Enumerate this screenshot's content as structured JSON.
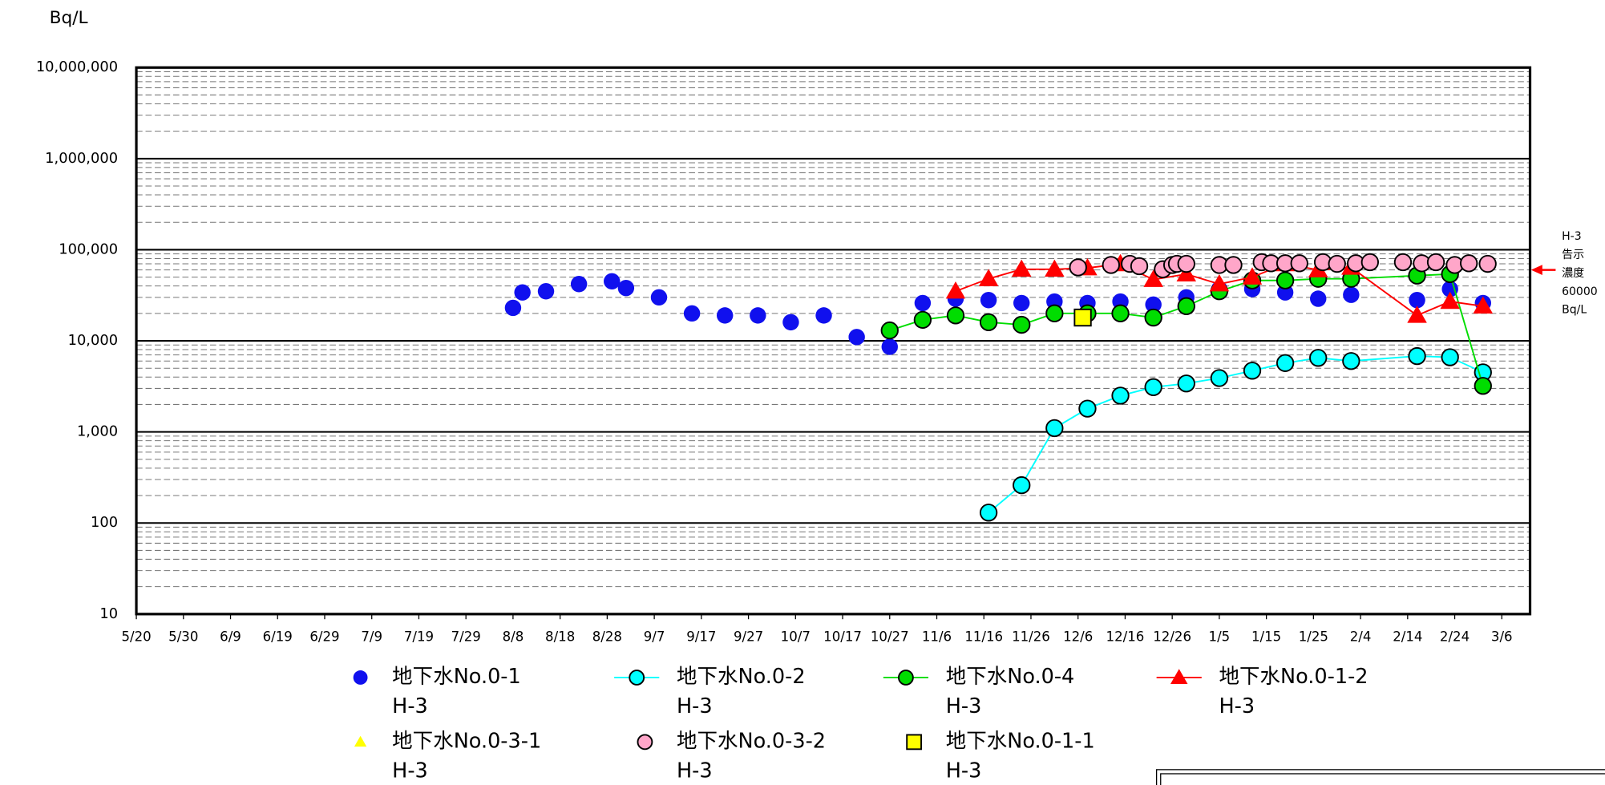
{
  "chart_data": {
    "type": "scatter",
    "y_unit_label": "Bq/L",
    "log_y": true,
    "grid": true,
    "minor_grid": true,
    "ylim": [
      10,
      10000000
    ],
    "yticks": [
      10,
      100,
      {
        "value": 1000,
        "label": "1,000"
      },
      {
        "value": 10000,
        "label": "10,000"
      },
      {
        "value": 100000,
        "label": "100,000"
      },
      {
        "value": 1000000,
        "label": "1,000,000"
      },
      {
        "value": 10000000,
        "label": "10,000,000"
      }
    ],
    "xlim": [
      0,
      296
    ],
    "xticks": [
      {
        "value": 0,
        "label": "5/20"
      },
      {
        "value": 10,
        "label": "5/30"
      },
      {
        "value": 20,
        "label": "6/9"
      },
      {
        "value": 30,
        "label": "6/19"
      },
      {
        "value": 40,
        "label": "6/29"
      },
      {
        "value": 50,
        "label": "7/9"
      },
      {
        "value": 60,
        "label": "7/19"
      },
      {
        "value": 70,
        "label": "7/29"
      },
      {
        "value": 80,
        "label": "8/8"
      },
      {
        "value": 90,
        "label": "8/18"
      },
      {
        "value": 100,
        "label": "8/28"
      },
      {
        "value": 110,
        "label": "9/7"
      },
      {
        "value": 120,
        "label": "9/17"
      },
      {
        "value": 130,
        "label": "9/27"
      },
      {
        "value": 140,
        "label": "10/7"
      },
      {
        "value": 150,
        "label": "10/17"
      },
      {
        "value": 160,
        "label": "10/27"
      },
      {
        "value": 170,
        "label": "11/6"
      },
      {
        "value": 180,
        "label": "11/16"
      },
      {
        "value": 190,
        "label": "11/26"
      },
      {
        "value": 200,
        "label": "12/6"
      },
      {
        "value": 210,
        "label": "12/16"
      },
      {
        "value": 220,
        "label": "12/26"
      },
      {
        "value": 230,
        "label": "1/5"
      },
      {
        "value": 240,
        "label": "1/15"
      },
      {
        "value": 250,
        "label": "1/25"
      },
      {
        "value": 260,
        "label": "2/4"
      },
      {
        "value": 270,
        "label": "2/14"
      },
      {
        "value": 280,
        "label": "2/24"
      },
      {
        "value": 290,
        "label": "3/6"
      }
    ],
    "series": [
      {
        "name": "地下水No.0-1 H-3",
        "color": "#1010ee",
        "marker": "circle",
        "line": false,
        "x": [
          80,
          82,
          87,
          94,
          101,
          104,
          111,
          118,
          125,
          132,
          139,
          146,
          153,
          160,
          167,
          174,
          181,
          188,
          195,
          202,
          209,
          216,
          223,
          230,
          237,
          244,
          251,
          258,
          272,
          279,
          286
        ],
        "values": [
          23000,
          34000,
          35000,
          42000,
          45000,
          38000,
          30000,
          20000,
          19000,
          19000,
          16000,
          19000,
          11000,
          8600,
          26000,
          29000,
          28000,
          26000,
          27000,
          26000,
          27000,
          25000,
          30000,
          37000,
          37000,
          34000,
          29000,
          32000,
          28000,
          37000,
          26000
        ]
      },
      {
        "name": "地下水No.0-2 H-3",
        "color": "#00ffff",
        "marker": "circle",
        "line": true,
        "x": [
          181,
          188,
          195,
          202,
          209,
          216,
          223,
          230,
          237,
          244,
          251,
          258,
          272,
          279,
          286
        ],
        "values": [
          130,
          260,
          1100,
          1800,
          2500,
          3100,
          3400,
          3900,
          4700,
          5700,
          6500,
          6000,
          6800,
          6600,
          4500
        ]
      },
      {
        "name": "地下水No.0-4 H-3",
        "color": "#00dd00",
        "marker": "circle",
        "line": true,
        "x": [
          160,
          167,
          174,
          181,
          188,
          195,
          202,
          209,
          216,
          223,
          230,
          237,
          244,
          251,
          258,
          272,
          279,
          286
        ],
        "values": [
          13000,
          17000,
          19000,
          16000,
          15000,
          20000,
          20000,
          20000,
          18000,
          24000,
          35000,
          46000,
          46000,
          48000,
          48000,
          52000,
          54000,
          3200
        ]
      },
      {
        "name": "地下水No.0-1-2 H-3",
        "color": "#ff0000",
        "marker": "triangle",
        "line": true,
        "x": [
          174,
          181,
          188,
          195,
          202,
          209,
          216,
          223,
          230,
          237,
          244,
          251,
          258,
          272,
          279,
          286
        ],
        "values": [
          35000,
          48000,
          61000,
          61000,
          63000,
          70000,
          47000,
          54000,
          42000,
          50000,
          70000,
          60000,
          64000,
          19000,
          27000,
          24000
        ]
      },
      {
        "name": "地下水No.0-3-1 H-3",
        "color": "#ffff00",
        "marker": "triangle",
        "line": false,
        "x": [],
        "values": []
      },
      {
        "name": "地下水No.0-3-2 H-3",
        "color": "#ffa6c9",
        "marker": "circle",
        "line": false,
        "x": [
          200,
          207,
          211,
          213,
          218,
          220,
          221,
          223,
          230,
          233,
          239,
          241,
          244,
          247,
          252,
          255,
          259,
          262,
          269,
          273,
          276,
          280,
          283,
          287
        ],
        "values": [
          64000,
          68000,
          70000,
          66000,
          61000,
          68000,
          70000,
          70000,
          68000,
          68000,
          73000,
          71000,
          71000,
          71000,
          73000,
          70000,
          71000,
          73000,
          73000,
          71000,
          73000,
          68000,
          71000,
          70000
        ]
      },
      {
        "name": "地下水No.0-1-1 H-3",
        "color": "#ffff00",
        "marker": "square",
        "line": false,
        "x": [
          201
        ],
        "values": [
          18000
        ]
      }
    ],
    "annotation": {
      "lines": [
        "H-3",
        "告示",
        "濃度"
      ],
      "value": 60000,
      "unit": "Bq/L"
    }
  }
}
